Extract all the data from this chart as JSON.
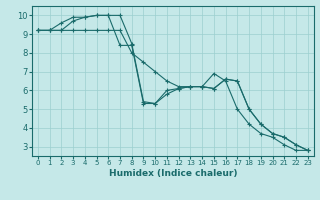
{
  "line1": {
    "x": [
      0,
      1,
      2,
      3,
      4,
      5,
      6,
      7,
      8,
      9,
      10,
      11,
      12,
      13,
      14,
      15,
      16,
      17,
      18,
      19,
      20,
      21,
      22,
      23
    ],
    "y": [
      9.2,
      9.2,
      9.2,
      9.7,
      9.9,
      10.0,
      10.0,
      8.4,
      8.4,
      5.3,
      5.3,
      5.8,
      6.1,
      6.2,
      6.2,
      6.1,
      6.6,
      6.5,
      5.0,
      4.2,
      3.7,
      3.5,
      3.1,
      2.8
    ]
  },
  "line2": {
    "x": [
      0,
      1,
      2,
      3,
      4,
      5,
      6,
      7,
      8,
      9,
      10,
      11,
      12,
      13,
      14,
      15,
      16,
      17,
      18,
      19,
      20,
      21,
      22,
      23
    ],
    "y": [
      9.2,
      9.2,
      9.6,
      9.9,
      9.9,
      10.0,
      10.0,
      10.0,
      8.5,
      5.4,
      5.3,
      6.0,
      6.1,
      6.2,
      6.2,
      6.9,
      6.5,
      5.0,
      4.2,
      3.7,
      3.5,
      3.1,
      2.8,
      2.8
    ]
  },
  "line3": {
    "x": [
      0,
      1,
      2,
      3,
      4,
      5,
      6,
      7,
      8,
      9,
      10,
      11,
      12,
      13,
      14,
      15,
      16,
      17,
      18,
      19,
      20,
      21,
      22,
      23
    ],
    "y": [
      9.2,
      9.2,
      9.2,
      9.2,
      9.2,
      9.2,
      9.2,
      9.2,
      8.0,
      7.5,
      7.0,
      6.5,
      6.2,
      6.2,
      6.2,
      6.1,
      6.6,
      6.5,
      5.0,
      4.2,
      3.7,
      3.5,
      3.1,
      2.8
    ]
  },
  "line_color": "#1a6b6b",
  "bg_color": "#c5e8e8",
  "grid_color": "#9ccfcf",
  "xlabel": "Humidex (Indice chaleur)",
  "xlim": [
    -0.5,
    23.5
  ],
  "ylim": [
    2.5,
    10.5
  ],
  "yticks": [
    3,
    4,
    5,
    6,
    7,
    8,
    9,
    10
  ],
  "xticks": [
    0,
    1,
    2,
    3,
    4,
    5,
    6,
    7,
    8,
    9,
    10,
    11,
    12,
    13,
    14,
    15,
    16,
    17,
    18,
    19,
    20,
    21,
    22,
    23
  ]
}
